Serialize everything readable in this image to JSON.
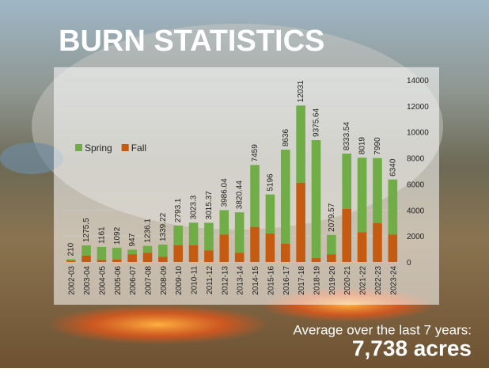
{
  "chart_data": {
    "type": "stacked_bar",
    "title": "BURN STATISTICS",
    "categories": [
      "2002-03",
      "2003-04",
      "2004-05",
      "2005-06",
      "2006-07",
      "2007-08",
      "2008-09",
      "2009-10",
      "2010-11",
      "2011-12",
      "2012-13",
      "2013-14",
      "2014-15",
      "2015-16",
      "2016-17",
      "2017-18",
      "2018-19",
      "2019-20",
      "2020-21",
      "2021-22",
      "2022-23",
      "2023-24"
    ],
    "series": [
      {
        "name": "Spring",
        "color": "#70ad47",
        "values": [
          110,
          775.5,
          1011,
          892,
          347,
          536.1,
          939.22,
          1493.1,
          1723.3,
          2115.37,
          1886.04,
          3120.44,
          4759,
          2996,
          7236,
          5931,
          9075.64,
          1479.57,
          4233.54,
          5719,
          4990,
          4240
        ]
      },
      {
        "name": "Fall",
        "color": "#c55a11",
        "values": [
          100,
          500,
          150,
          200,
          600,
          700,
          400,
          1300,
          1300,
          900,
          2100,
          700,
          2700,
          2200,
          1400,
          6100,
          300,
          600,
          4100,
          2300,
          3000,
          2100
        ]
      }
    ],
    "totals": [
      210,
      1275.5,
      1161,
      1092,
      947,
      1236.1,
      1339.22,
      2793.1,
      3023.3,
      3015.37,
      3986.04,
      3820.44,
      7459,
      5196,
      8636,
      12031,
      9375.64,
      2079.57,
      8333.54,
      8019,
      7990,
      6340
    ],
    "ylim": [
      0,
      14000
    ],
    "yticks": [
      0,
      2000,
      4000,
      6000,
      8000,
      10000,
      12000,
      14000
    ],
    "legend": "upper-left",
    "annotation": "Average over the last 7 years:",
    "annotation_value": "7,738 acres"
  }
}
